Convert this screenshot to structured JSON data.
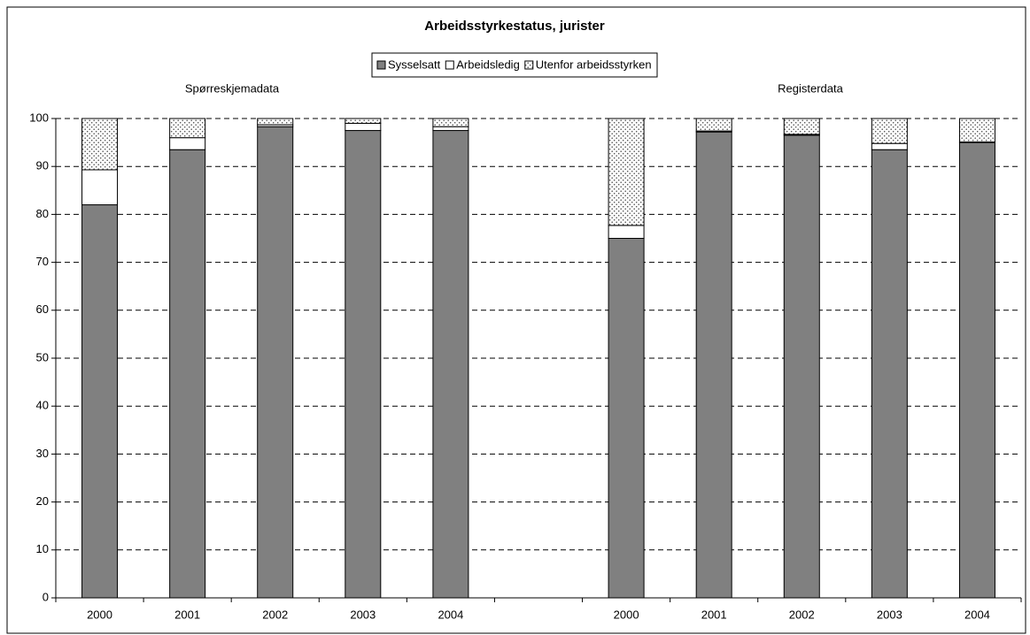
{
  "chart_data": {
    "type": "stacked_bar",
    "title": "Arbeidsstyrkestatus, jurister",
    "annotations": [
      "Spørreskjemadata",
      "Registerdata"
    ],
    "categories": [
      "2000",
      "2001",
      "2002",
      "2003",
      "2004",
      null,
      "2000",
      "2001",
      "2002",
      "2003",
      "2004"
    ],
    "series": [
      {
        "name": "Sysselsatt",
        "color": "#808080",
        "values": [
          82,
          93.5,
          98.3,
          97.5,
          97.5,
          null,
          75,
          97.2,
          96.5,
          93.5,
          95
        ]
      },
      {
        "name": "Arbeidsledig",
        "color": "#ffffff",
        "values": [
          7.3,
          2.5,
          0.4,
          1.5,
          0.8,
          null,
          2.7,
          0.2,
          0.2,
          1.3,
          0.1
        ]
      },
      {
        "name": "Utenfor arbeidsstyrken",
        "color": "#ffffff",
        "pattern": "dots",
        "values": [
          10.7,
          4,
          1.3,
          1,
          1.7,
          null,
          22.3,
          2.6,
          3.3,
          5.2,
          4.9
        ]
      }
    ],
    "ylim": [
      0,
      100
    ],
    "yticks": [
      0,
      10,
      20,
      30,
      40,
      50,
      60,
      70,
      80,
      90,
      100
    ],
    "grid": true
  }
}
